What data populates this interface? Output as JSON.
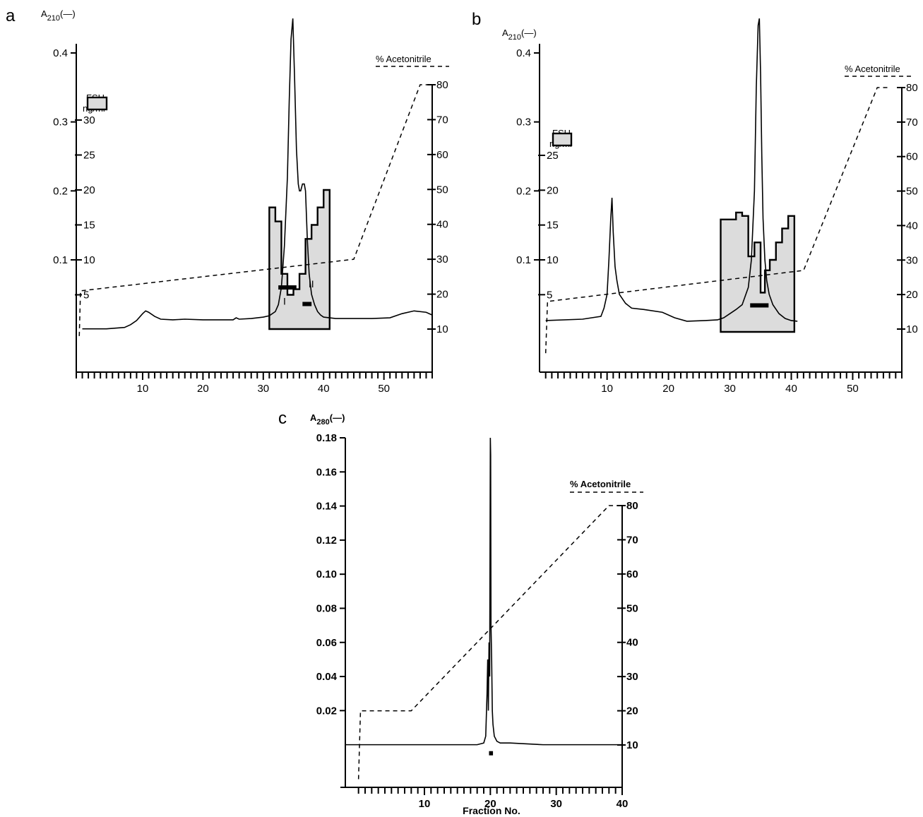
{
  "figure": {
    "panels": [
      {
        "id": "a",
        "label": "a",
        "left_axis_title": "A210",
        "left_axis_sub": "210",
        "left_axis_prefix": "A",
        "left_axis_key": "(—)",
        "right_axis_title": "% Acetonitrile",
        "fsh_legend": [
          "FSH",
          "ng/ml"
        ],
        "roman_labels": [
          "I",
          "II"
        ]
      },
      {
        "id": "b",
        "label": "b",
        "left_axis_title": "A210",
        "left_axis_sub": "210",
        "left_axis_prefix": "A",
        "left_axis_key": "(—)",
        "right_axis_title": "% Acetonitrile",
        "fsh_legend": [
          "FSH",
          "ng/ml"
        ]
      },
      {
        "id": "c",
        "label": "c",
        "left_axis_title": "A280",
        "left_axis_sub": "280",
        "left_axis_prefix": "A",
        "left_axis_key": "(—)",
        "right_axis_title": "% Acetonitrile",
        "x_axis_label": "Fraction No."
      }
    ]
  },
  "chart_data": [
    {
      "panel": "a",
      "type": "line",
      "title": "",
      "xlabel": "",
      "ylabel": "A210",
      "y2label": "% Acetonitrile",
      "y3label": "FSH ng/ml",
      "xlim": [
        -1,
        58
      ],
      "ylim": [
        -0.02,
        0.44
      ],
      "y2lim": [
        0,
        90
      ],
      "y3lim": [
        -10,
        36
      ],
      "xticks": [
        10,
        20,
        30,
        40,
        50
      ],
      "yticks": [
        0.1,
        0.2,
        0.3,
        0.4
      ],
      "yticklabels": [
        "0.1",
        "0.2",
        "0.3",
        "0.4"
      ],
      "y2ticks": [
        10,
        20,
        30,
        40,
        50,
        60,
        70,
        80
      ],
      "y3ticks": [
        5,
        10,
        15,
        20,
        25,
        30
      ],
      "series": [
        {
          "kind": "absorbance",
          "x": [
            0,
            4,
            7,
            8,
            9,
            10,
            10.5,
            11,
            12,
            13,
            15,
            17,
            20,
            23,
            25,
            25.5,
            26,
            28,
            30,
            31,
            32,
            32.5,
            33,
            33.5,
            34,
            34.3,
            34.6,
            34.9,
            35.2,
            35.5,
            35.8,
            36,
            36.2,
            36.5,
            36.8,
            37,
            37.3,
            37.6,
            38,
            38.5,
            39,
            39.5,
            40,
            42,
            45,
            48,
            51,
            53,
            55,
            57,
            58
          ],
          "y": [
            0.0,
            0.0,
            0.002,
            0.006,
            0.012,
            0.022,
            0.026,
            0.024,
            0.018,
            0.014,
            0.013,
            0.014,
            0.013,
            0.013,
            0.013,
            0.016,
            0.014,
            0.015,
            0.017,
            0.019,
            0.025,
            0.035,
            0.06,
            0.12,
            0.22,
            0.33,
            0.42,
            0.45,
            0.36,
            0.26,
            0.21,
            0.2,
            0.2,
            0.21,
            0.21,
            0.2,
            0.13,
            0.08,
            0.05,
            0.035,
            0.025,
            0.02,
            0.017,
            0.015,
            0.015,
            0.015,
            0.016,
            0.022,
            0.026,
            0.024,
            0.02
          ]
        },
        {
          "kind": "acetonitrile",
          "x": [
            -0.5,
            -0.3,
            0,
            45,
            56,
            58
          ],
          "y": [
            8,
            21,
            21,
            30,
            80,
            80
          ]
        },
        {
          "kind": "fsh",
          "bins": [
            [
              31,
              32,
              17.5
            ],
            [
              32,
              33,
              15.5
            ],
            [
              33,
              34,
              8
            ],
            [
              34,
              35,
              5
            ],
            [
              35,
              36,
              5.8
            ],
            [
              36,
              37,
              8
            ],
            [
              37,
              38,
              13
            ],
            [
              38,
              39,
              15
            ],
            [
              39,
              40,
              17.5
            ],
            [
              40,
              41,
              20
            ]
          ]
        }
      ],
      "annotations": [
        "I",
        "II"
      ],
      "bars": [
        [
          32.5,
          35.5,
          0.06
        ],
        [
          36.5,
          38.0,
          0.036
        ]
      ]
    },
    {
      "panel": "b",
      "type": "line",
      "title": "",
      "xlabel": "",
      "ylabel": "A210",
      "y2label": "% Acetonitrile",
      "y3label": "FSH ng/ml",
      "xlim": [
        -1,
        58
      ],
      "ylim": [
        -0.02,
        0.44
      ],
      "y2lim": [
        0,
        90
      ],
      "y3lim": [
        -10,
        36
      ],
      "xticks": [
        10,
        20,
        30,
        40,
        50
      ],
      "yticks": [
        0.1,
        0.2,
        0.3,
        0.4
      ],
      "yticklabels": [
        "0.1",
        "0.2",
        "0.3",
        "0.4"
      ],
      "y2ticks": [
        10,
        20,
        30,
        40,
        50,
        60,
        70,
        80
      ],
      "y3ticks": [
        5,
        10,
        15,
        20,
        25
      ],
      "series": [
        {
          "kind": "absorbance",
          "x": [
            0,
            6,
            9,
            9.5,
            10,
            10.3,
            10.6,
            10.8,
            11,
            11.3,
            11.6,
            12,
            13,
            14,
            16,
            19,
            21,
            23,
            26,
            28,
            29,
            30,
            31,
            32,
            33,
            33.5,
            34,
            34.3,
            34.6,
            34.8,
            35,
            35.2,
            35.4,
            35.7,
            36,
            36.4,
            37,
            38,
            39,
            40,
            41
          ],
          "y": [
            0.012,
            0.014,
            0.018,
            0.03,
            0.05,
            0.1,
            0.16,
            0.19,
            0.14,
            0.09,
            0.07,
            0.05,
            0.037,
            0.03,
            0.028,
            0.024,
            0.016,
            0.011,
            0.012,
            0.013,
            0.016,
            0.022,
            0.028,
            0.035,
            0.06,
            0.1,
            0.2,
            0.35,
            0.44,
            0.45,
            0.37,
            0.25,
            0.16,
            0.1,
            0.07,
            0.05,
            0.035,
            0.022,
            0.015,
            0.012,
            0.011
          ]
        },
        {
          "kind": "acetonitrile",
          "x": [
            0,
            0.3,
            42,
            54,
            56
          ],
          "y": [
            3,
            18,
            27,
            80,
            80
          ]
        },
        {
          "kind": "fsh",
          "bins": [
            [
              28.5,
              31,
              15.8
            ],
            [
              31,
              32,
              16.8
            ],
            [
              32,
              33,
              16.3
            ],
            [
              33,
              34,
              10.5
            ],
            [
              34,
              35,
              12.5
            ],
            [
              35,
              35.7,
              5.3
            ],
            [
              35.7,
              36.5,
              8.5
            ],
            [
              36.5,
              37.5,
              10
            ],
            [
              37.5,
              38.5,
              12.5
            ],
            [
              38.5,
              39.5,
              14.5
            ],
            [
              39.5,
              40.5,
              16.3
            ]
          ]
        }
      ],
      "bars": [
        [
          33.3,
          36.3,
          0.034
        ]
      ]
    },
    {
      "panel": "c",
      "type": "line",
      "title": "",
      "xlabel": "Fraction No.",
      "ylabel": "A280",
      "y2label": "% Acetonitrile",
      "xlim": [
        -2,
        40
      ],
      "ylim": [
        -0.025,
        0.18
      ],
      "y2lim": [
        0,
        80
      ],
      "xticks": [
        10,
        20,
        30,
        40
      ],
      "yticks": [
        0.02,
        0.04,
        0.06,
        0.08,
        0.1,
        0.12,
        0.14,
        0.16,
        0.18
      ],
      "yticklabels": [
        "0.02",
        "0.04",
        "0.06",
        "0.08",
        "0.10",
        "0.12",
        "0.14",
        "0.16",
        "0.18"
      ],
      "y2ticks": [
        10,
        20,
        30,
        40,
        50,
        60,
        70,
        80
      ],
      "series": [
        {
          "kind": "absorbance",
          "x": [
            -2,
            5,
            10,
            15,
            18,
            19,
            19.3,
            19.5,
            19.6,
            19.7,
            19.8,
            19.9,
            20.0,
            20.05,
            20.1,
            20.2,
            20.3,
            20.4,
            20.6,
            21,
            21.5,
            23,
            28,
            32,
            36,
            40
          ],
          "y": [
            0.0,
            0.0,
            0.0,
            0.0,
            0.0,
            0.001,
            0.005,
            0.03,
            0.05,
            0.02,
            0.06,
            0.04,
            0.18,
            0.17,
            0.07,
            0.05,
            0.02,
            0.012,
            0.005,
            0.002,
            0.001,
            0.001,
            0.0,
            0.0,
            0.0,
            0.0
          ]
        },
        {
          "kind": "acetonitrile",
          "x": [
            0,
            0.3,
            8,
            38,
            40
          ],
          "y": [
            0,
            20,
            20,
            80,
            80
          ]
        }
      ],
      "bars": [
        [
          19.8,
          20.4,
          -0.005
        ]
      ]
    }
  ]
}
